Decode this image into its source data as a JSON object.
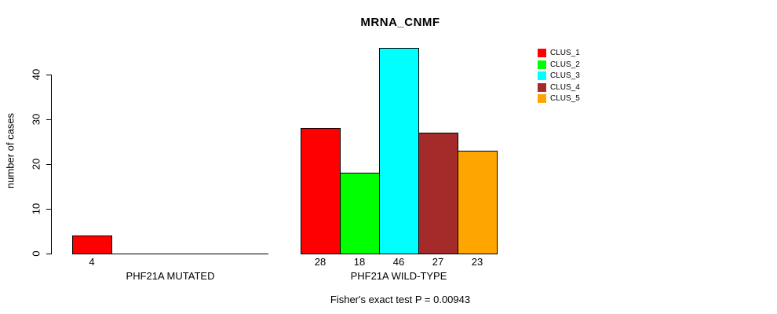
{
  "chart_data": {
    "type": "bar",
    "title": "MRNA_CNMF",
    "ylabel": "number of cases",
    "xlabel": "",
    "ylim": [
      0,
      40
    ],
    "yticks": [
      0,
      10,
      20,
      30,
      40
    ],
    "grid": false,
    "legend_position": "top-right",
    "series": [
      {
        "name": "CLUS_1",
        "color": "#FF0000"
      },
      {
        "name": "CLUS_2",
        "color": "#00FF00"
      },
      {
        "name": "CLUS_3",
        "color": "#00FFFF"
      },
      {
        "name": "CLUS_4",
        "color": "#A52A2A"
      },
      {
        "name": "CLUS_5",
        "color": "#FFA500"
      }
    ],
    "groups": [
      {
        "label": "PHF21A MUTATED",
        "values": [
          4,
          0,
          0,
          0,
          0
        ]
      },
      {
        "label": "PHF21A WILD-TYPE",
        "values": [
          28,
          18,
          46,
          27,
          23
        ]
      }
    ],
    "caption": "Fisher's exact test P = 0.00943"
  }
}
